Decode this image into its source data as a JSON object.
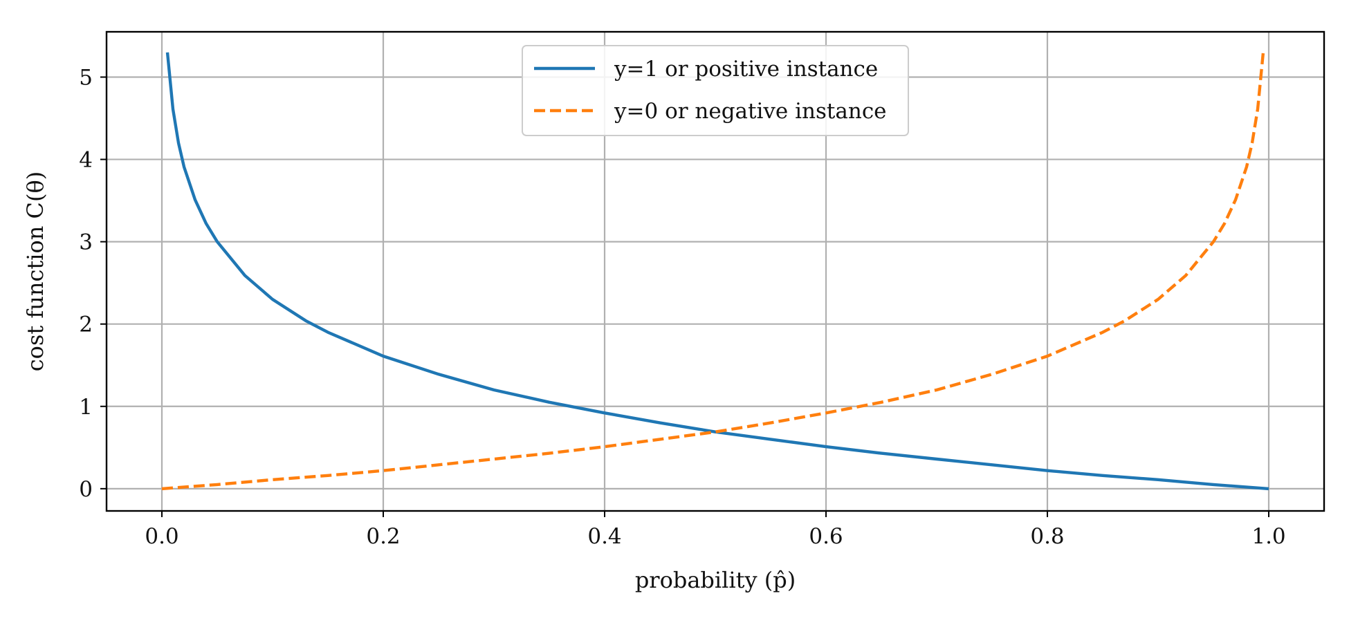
{
  "chart_data": {
    "type": "line",
    "title": "",
    "xlabel": "probability (p̂)",
    "ylabel": "cost function C(θ)",
    "xlim": [
      -0.05,
      1.05
    ],
    "ylim": [
      -0.27,
      5.55
    ],
    "x_ticks": [
      0.0,
      0.2,
      0.4,
      0.6,
      0.8,
      1.0
    ],
    "x_tick_labels": [
      "0.0",
      "0.2",
      "0.4",
      "0.6",
      "0.8",
      "1.0"
    ],
    "y_ticks": [
      0,
      1,
      2,
      3,
      4,
      5
    ],
    "y_tick_labels": [
      "0",
      "1",
      "2",
      "3",
      "4",
      "5"
    ],
    "grid": true,
    "legend_position": "top-center",
    "series": [
      {
        "name": "y=1 or positive instance",
        "color": "#1f77b4",
        "dash": "solid",
        "x": [
          0.005,
          0.01,
          0.015,
          0.02,
          0.03,
          0.04,
          0.05,
          0.075,
          0.1,
          0.13,
          0.15,
          0.2,
          0.25,
          0.3,
          0.35,
          0.4,
          0.45,
          0.5,
          0.55,
          0.6,
          0.65,
          0.7,
          0.75,
          0.8,
          0.85,
          0.9,
          0.95,
          1.0
        ],
        "y": [
          5.3,
          4.61,
          4.2,
          3.91,
          3.51,
          3.22,
          3.0,
          2.59,
          2.3,
          2.04,
          1.9,
          1.61,
          1.39,
          1.2,
          1.05,
          0.92,
          0.8,
          0.69,
          0.6,
          0.51,
          0.43,
          0.36,
          0.29,
          0.22,
          0.16,
          0.11,
          0.05,
          0.0
        ]
      },
      {
        "name": "y=0 or negative instance",
        "color": "#ff7f0e",
        "dash": "dashed",
        "x": [
          0.0,
          0.05,
          0.1,
          0.15,
          0.2,
          0.25,
          0.3,
          0.35,
          0.4,
          0.45,
          0.5,
          0.55,
          0.6,
          0.65,
          0.7,
          0.75,
          0.8,
          0.85,
          0.87,
          0.9,
          0.925,
          0.95,
          0.96,
          0.97,
          0.98,
          0.985,
          0.99,
          0.995
        ],
        "y": [
          0.0,
          0.05,
          0.11,
          0.16,
          0.22,
          0.29,
          0.36,
          0.43,
          0.51,
          0.6,
          0.69,
          0.8,
          0.92,
          1.05,
          1.2,
          1.39,
          1.61,
          1.9,
          2.04,
          2.3,
          2.59,
          3.0,
          3.22,
          3.51,
          3.91,
          4.2,
          4.61,
          5.3
        ]
      }
    ]
  }
}
